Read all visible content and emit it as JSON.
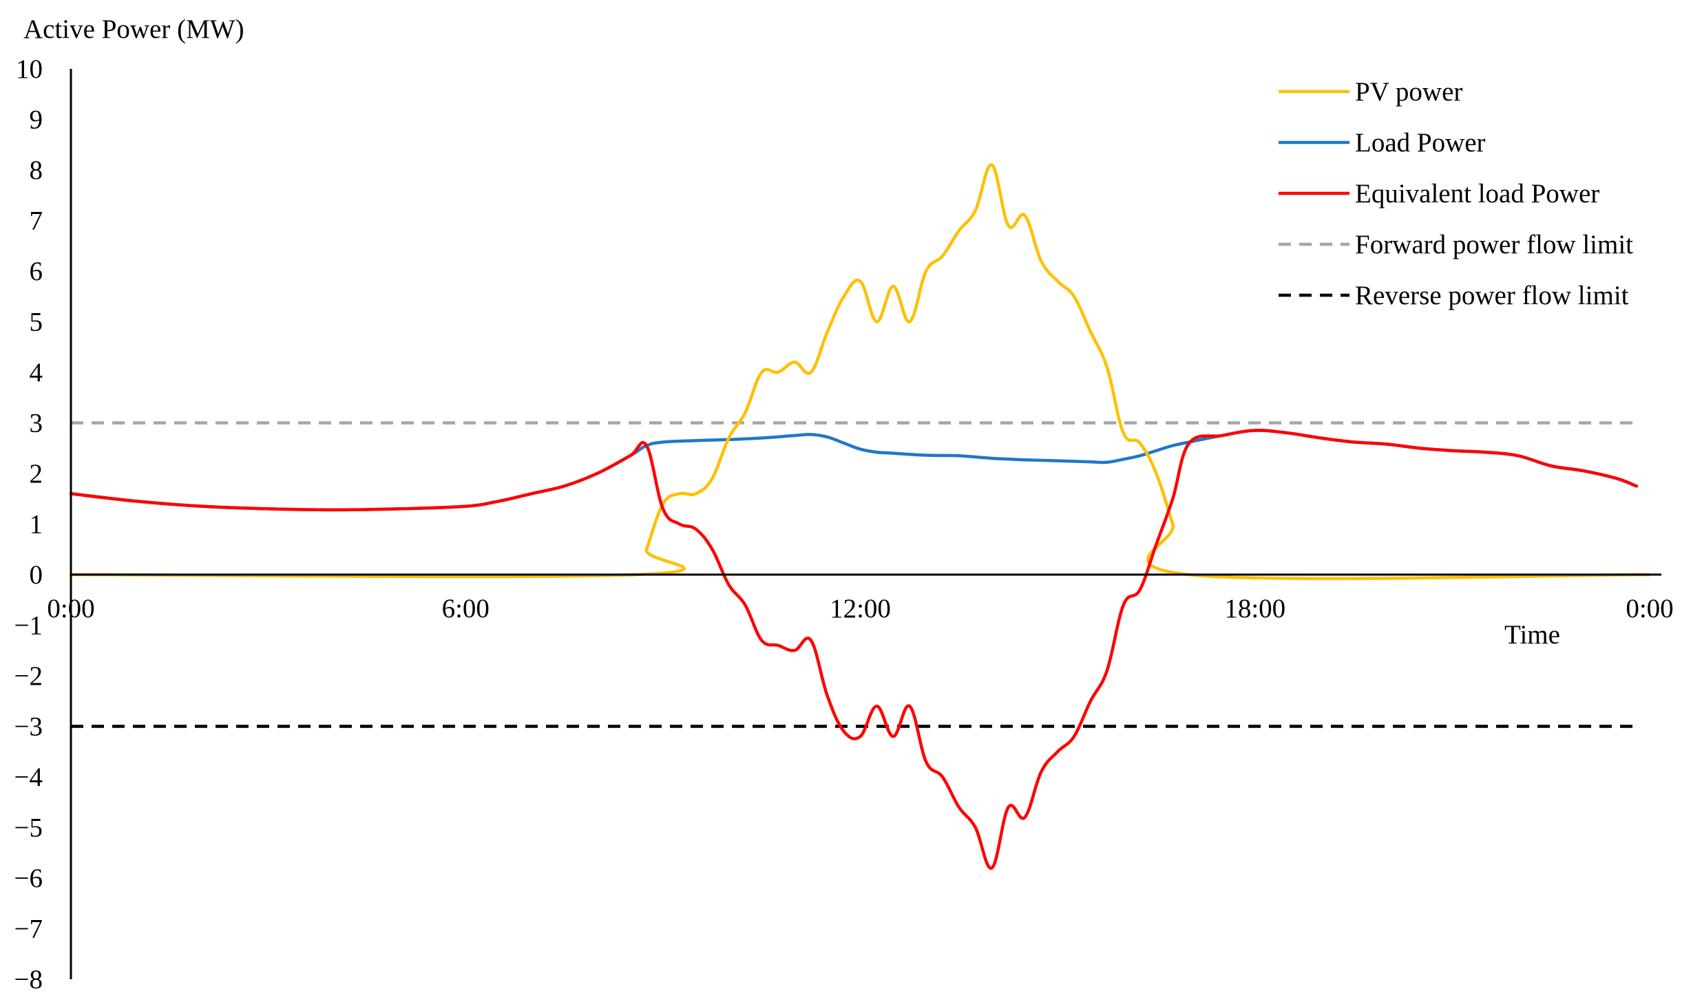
{
  "chart_data": {
    "type": "line",
    "ylabel": "Active Power (MW)",
    "xlabel": "Time",
    "ylim": [
      -8,
      10
    ],
    "y_ticks": [
      10,
      9,
      8,
      7,
      6,
      5,
      4,
      3,
      2,
      1,
      0,
      -1,
      -2,
      -3,
      -4,
      -5,
      -6,
      -7,
      -8
    ],
    "xlim": [
      0,
      24
    ],
    "x_tick_values": [
      0,
      6,
      12,
      18,
      24
    ],
    "x_tick_labels": [
      "0:00",
      "6:00",
      "12:00",
      "18:00",
      "0:00"
    ],
    "grid": false,
    "legend_position": "top-right",
    "series": [
      {
        "name": "PV power",
        "color": "#FFC000",
        "style": "solid",
        "x": [
          0,
          8.6,
          8.75,
          9.0,
          9.25,
          9.5,
          9.75,
          10.0,
          10.25,
          10.5,
          10.75,
          11.0,
          11.25,
          11.5,
          11.75,
          12.0,
          12.25,
          12.5,
          12.75,
          13.0,
          13.25,
          13.5,
          13.75,
          14.0,
          14.25,
          14.5,
          14.75,
          15.0,
          15.25,
          15.5,
          15.75,
          16.0,
          16.25,
          16.5,
          16.75,
          17.0,
          24
        ],
        "y": [
          0,
          0,
          0.5,
          1.4,
          1.6,
          1.6,
          1.9,
          2.7,
          3.2,
          4.0,
          4.0,
          4.2,
          4.0,
          4.8,
          5.5,
          5.8,
          5.0,
          5.7,
          5.0,
          6.0,
          6.3,
          6.8,
          7.2,
          8.1,
          6.9,
          7.1,
          6.2,
          5.8,
          5.5,
          4.8,
          4.1,
          2.8,
          2.6,
          2.0,
          1.0,
          0,
          0
        ]
      },
      {
        "name": "Load Power",
        "color": "#1F77C9",
        "style": "solid",
        "x": [
          0,
          1,
          2,
          3,
          4,
          5,
          6,
          6.5,
          7,
          7.5,
          8,
          8.5,
          8.75,
          9,
          9.5,
          10,
          10.5,
          11,
          11.25,
          11.5,
          11.75,
          12,
          12.25,
          12.5,
          13,
          13.5,
          14,
          14.5,
          15,
          15.5,
          15.75,
          16,
          16.25,
          16.5,
          16.75,
          17,
          17.5,
          18,
          18.5,
          19,
          19.5,
          20,
          20.5,
          21,
          21.5,
          22,
          22.5,
          23,
          23.5,
          23.8
        ],
        "y": [
          1.6,
          1.45,
          1.35,
          1.3,
          1.28,
          1.3,
          1.35,
          1.45,
          1.6,
          1.75,
          2.0,
          2.35,
          2.55,
          2.62,
          2.65,
          2.67,
          2.7,
          2.75,
          2.77,
          2.72,
          2.6,
          2.48,
          2.42,
          2.4,
          2.36,
          2.35,
          2.3,
          2.27,
          2.25,
          2.23,
          2.22,
          2.28,
          2.35,
          2.45,
          2.55,
          2.62,
          2.75,
          2.85,
          2.8,
          2.7,
          2.62,
          2.58,
          2.5,
          2.45,
          2.42,
          2.35,
          2.15,
          2.05,
          1.9,
          1.75
        ]
      },
      {
        "name": "Equivalent load Power",
        "color": "#FF0000",
        "style": "solid",
        "x": [
          0,
          1,
          2,
          3,
          4,
          5,
          6,
          6.5,
          7,
          7.5,
          8,
          8.5,
          8.75,
          9,
          9.25,
          9.5,
          9.75,
          10,
          10.25,
          10.5,
          10.75,
          11,
          11.25,
          11.5,
          11.75,
          12,
          12.25,
          12.5,
          12.75,
          13,
          13.25,
          13.5,
          13.75,
          14,
          14.25,
          14.5,
          14.75,
          15,
          15.25,
          15.5,
          15.75,
          16,
          16.25,
          16.5,
          16.75,
          17,
          17.5,
          18,
          18.5,
          19,
          19.5,
          20,
          20.5,
          21,
          21.5,
          22,
          22.5,
          23,
          23.5,
          23.8
        ],
        "y": [
          1.6,
          1.45,
          1.35,
          1.3,
          1.28,
          1.3,
          1.35,
          1.45,
          1.6,
          1.75,
          2.0,
          2.35,
          2.55,
          1.3,
          1.0,
          0.9,
          0.5,
          -0.2,
          -0.6,
          -1.3,
          -1.4,
          -1.5,
          -1.3,
          -2.4,
          -3.1,
          -3.2,
          -2.6,
          -3.2,
          -2.6,
          -3.7,
          -4.0,
          -4.6,
          -5.0,
          -5.8,
          -4.6,
          -4.8,
          -3.9,
          -3.5,
          -3.2,
          -2.5,
          -1.9,
          -0.6,
          -0.3,
          0.6,
          1.5,
          2.6,
          2.75,
          2.85,
          2.8,
          2.7,
          2.62,
          2.58,
          2.5,
          2.45,
          2.42,
          2.35,
          2.15,
          2.05,
          1.9,
          1.75
        ]
      },
      {
        "name": "Forward power flow limit",
        "color": "#A6A6A6",
        "style": "dashed",
        "x": [
          0,
          23.8
        ],
        "y": [
          3,
          3
        ]
      },
      {
        "name": "Reverse power flow limit",
        "color": "#000000",
        "style": "dashed",
        "x": [
          0,
          23.8
        ],
        "y": [
          -3,
          -3
        ]
      }
    ]
  }
}
